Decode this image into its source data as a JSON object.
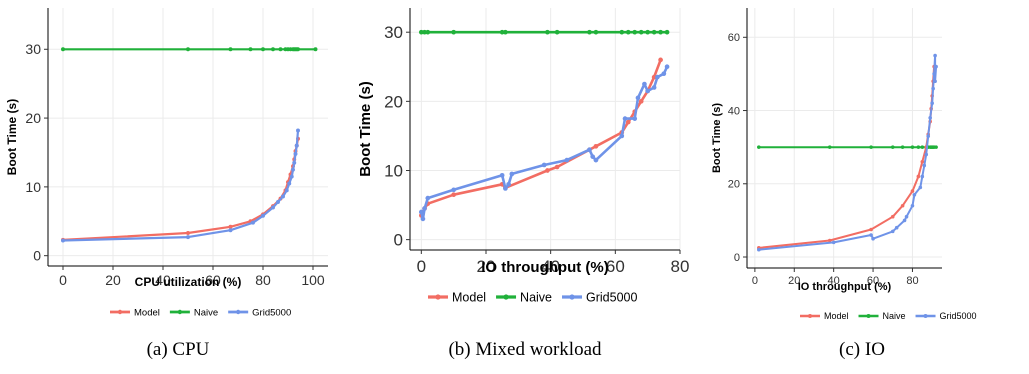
{
  "colors": {
    "model": "#f26d63",
    "naive": "#20b13a",
    "grid": "#6f93e8",
    "grid_line": "#ebebeb"
  },
  "legend": {
    "model": "Model",
    "naive": "Naive",
    "grid": "Grid5000"
  },
  "captions": {
    "a": "(a) CPU",
    "b": "(b) Mixed workload",
    "c": "(c) IO"
  },
  "chart_data": [
    {
      "type": "line",
      "xlabel": "CPU utilization (%)",
      "ylabel": "Boot Time (s)",
      "xlim": [
        -6,
        106
      ],
      "ylim": [
        -1.5,
        36
      ],
      "xticks": [
        0,
        20,
        40,
        60,
        80,
        100
      ],
      "yticks": [
        0,
        10,
        20,
        30
      ],
      "legend_position": "bottom",
      "series": [
        {
          "name": "Model",
          "x": [
            0,
            50,
            67,
            75,
            80,
            84,
            87,
            89,
            90,
            91,
            92,
            92.5,
            93,
            93.5,
            94
          ],
          "y": [
            2.3,
            3.3,
            4.2,
            5.0,
            6.0,
            7.2,
            8.3,
            9.5,
            10.7,
            11.8,
            13.0,
            14.0,
            15.2,
            16.0,
            17.0
          ]
        },
        {
          "name": "Naive",
          "x": [
            0,
            50,
            67,
            75,
            80,
            84,
            87,
            89,
            90,
            91,
            92,
            92.5,
            93,
            93.5,
            94,
            101
          ],
          "y": [
            30,
            30,
            30,
            30,
            30,
            30,
            30,
            30,
            30,
            30,
            30,
            30,
            30,
            30,
            30,
            30
          ]
        },
        {
          "name": "Grid5000",
          "x": [
            0,
            50,
            67,
            76,
            80,
            84,
            86,
            88,
            89.5,
            90.5,
            91.5,
            92,
            92.5,
            93,
            93.5,
            94
          ],
          "y": [
            2.2,
            2.7,
            3.7,
            4.8,
            5.8,
            7.0,
            7.8,
            8.6,
            9.5,
            10.5,
            11.5,
            12.5,
            13.5,
            14.8,
            16.0,
            18.2
          ]
        }
      ]
    },
    {
      "type": "line",
      "xlabel": "IO throughput (%)",
      "ylabel": "Boot Time (s)",
      "xlim": [
        -3.5,
        80
      ],
      "ylim": [
        -1.5,
        33.5
      ],
      "xticks": [
        0,
        20,
        40,
        60,
        80
      ],
      "yticks": [
        0,
        10,
        20,
        30
      ],
      "legend_position": "bottom",
      "series": [
        {
          "name": "Model",
          "x": [
            0,
            1,
            2,
            10,
            25,
            26,
            39,
            42,
            52,
            54,
            62,
            64,
            66,
            68,
            70,
            72,
            74
          ],
          "y": [
            3.5,
            4.5,
            5.2,
            6.5,
            8.0,
            7.5,
            10.0,
            10.5,
            13.0,
            13.5,
            15.5,
            17.0,
            18.5,
            20.0,
            21.5,
            23.5,
            26.0
          ]
        },
        {
          "name": "Naive",
          "x": [
            0,
            1,
            2,
            10,
            25,
            26,
            39,
            42,
            52,
            54,
            62,
            64,
            66,
            68,
            70,
            72,
            74,
            76
          ],
          "y": [
            30,
            30,
            30,
            30,
            30,
            30,
            30,
            30,
            30,
            30,
            30,
            30,
            30,
            30,
            30,
            30,
            30,
            30
          ]
        },
        {
          "name": "Grid5000",
          "x": [
            0,
            0.5,
            1,
            2,
            10,
            25,
            26,
            27,
            28,
            38,
            45,
            52,
            53,
            54,
            62,
            63,
            66,
            67,
            69,
            70,
            72,
            73,
            75,
            76
          ],
          "y": [
            4.0,
            3.0,
            4.5,
            6.0,
            7.2,
            9.3,
            7.4,
            8.0,
            9.5,
            10.8,
            11.5,
            13.0,
            12.0,
            11.5,
            15.0,
            17.5,
            17.5,
            20.5,
            22.5,
            21.5,
            22.0,
            23.5,
            24.0,
            25.0
          ]
        }
      ]
    },
    {
      "type": "line",
      "xlabel": "IO throughput (%)",
      "ylabel": "Boot Time (s)",
      "xlim": [
        -4,
        95
      ],
      "ylim": [
        -3,
        68
      ],
      "xticks": [
        0,
        20,
        40,
        60,
        80
      ],
      "yticks": [
        0,
        20,
        40,
        60
      ],
      "legend_position": "bottom",
      "series": [
        {
          "name": "Model",
          "x": [
            2,
            38,
            59,
            70,
            75,
            80,
            83,
            85,
            87,
            88,
            89,
            89.5,
            90,
            90.5,
            91
          ],
          "y": [
            2.5,
            4.5,
            7.5,
            11.0,
            14.0,
            18.0,
            22.0,
            26.0,
            30.0,
            33.5,
            37.0,
            40.5,
            44.0,
            48.0,
            52.0
          ]
        },
        {
          "name": "Naive",
          "x": [
            2,
            38,
            59,
            70,
            75,
            80,
            83,
            85,
            87,
            88,
            89,
            89.5,
            90,
            90.5,
            91,
            92
          ],
          "y": [
            30,
            30,
            30,
            30,
            30,
            30,
            30,
            30,
            30,
            30,
            30,
            30,
            30,
            30,
            30,
            30
          ]
        },
        {
          "name": "Grid5000",
          "x": [
            2,
            40,
            59,
            60,
            70,
            72,
            76,
            77,
            80,
            81,
            84,
            85,
            86,
            87,
            88,
            89,
            90,
            90.5,
            91,
            91.5,
            91.5,
            92
          ],
          "y": [
            2.0,
            4.0,
            6.0,
            5.0,
            7.0,
            8.0,
            10.0,
            11.0,
            14.0,
            17.0,
            19.0,
            22.0,
            25.0,
            28.0,
            33.0,
            38.0,
            42.0,
            46.0,
            50.0,
            55.0,
            48.0,
            52.0
          ]
        }
      ]
    }
  ]
}
